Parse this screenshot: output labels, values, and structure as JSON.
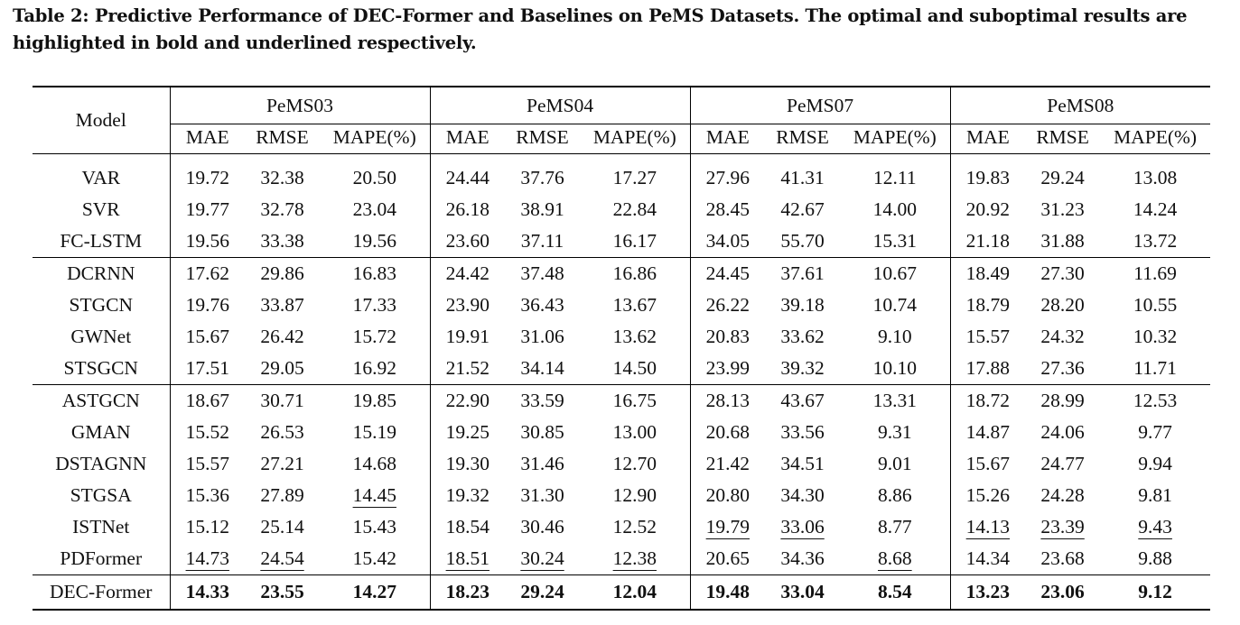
{
  "caption": "Table 2: Predictive Performance of DEC-Former and Baselines on PeMS Datasets. The optimal and suboptimal results are highlighted in bold and underlined respectively.",
  "header": {
    "model_label": "Model",
    "datasets": [
      "PeMS03",
      "PeMS04",
      "PeMS07",
      "PeMS08"
    ],
    "metrics": [
      "MAE",
      "RMSE",
      "MAPE(%)"
    ]
  },
  "rows": [
    {
      "model": "VAR",
      "values": [
        "19.72",
        "32.38",
        "20.50",
        "24.44",
        "37.76",
        "17.27",
        "27.96",
        "41.31",
        "12.11",
        "19.83",
        "29.24",
        "13.08"
      ]
    },
    {
      "model": "SVR",
      "values": [
        "19.77",
        "32.78",
        "23.04",
        "26.18",
        "38.91",
        "22.84",
        "28.45",
        "42.67",
        "14.00",
        "20.92",
        "31.23",
        "14.24"
      ]
    },
    {
      "model": "FC-LSTM",
      "values": [
        "19.56",
        "33.38",
        "19.56",
        "23.60",
        "37.11",
        "16.17",
        "34.05",
        "55.70",
        "15.31",
        "21.18",
        "31.88",
        "13.72"
      ]
    },
    {
      "model": "DCRNN",
      "values": [
        "17.62",
        "29.86",
        "16.83",
        "24.42",
        "37.48",
        "16.86",
        "24.45",
        "37.61",
        "10.67",
        "18.49",
        "27.30",
        "11.69"
      ]
    },
    {
      "model": "STGCN",
      "values": [
        "19.76",
        "33.87",
        "17.33",
        "23.90",
        "36.43",
        "13.67",
        "26.22",
        "39.18",
        "10.74",
        "18.79",
        "28.20",
        "10.55"
      ]
    },
    {
      "model": "GWNet",
      "values": [
        "15.67",
        "26.42",
        "15.72",
        "19.91",
        "31.06",
        "13.62",
        "20.83",
        "33.62",
        "9.10",
        "15.57",
        "24.32",
        "10.32"
      ]
    },
    {
      "model": "STSGCN",
      "values": [
        "17.51",
        "29.05",
        "16.92",
        "21.52",
        "34.14",
        "14.50",
        "23.99",
        "39.32",
        "10.10",
        "17.88",
        "27.36",
        "11.71"
      ]
    },
    {
      "model": "ASTGCN",
      "values": [
        "18.67",
        "30.71",
        "19.85",
        "22.90",
        "33.59",
        "16.75",
        "28.13",
        "43.67",
        "13.31",
        "18.72",
        "28.99",
        "12.53"
      ]
    },
    {
      "model": "GMAN",
      "values": [
        "15.52",
        "26.53",
        "15.19",
        "19.25",
        "30.85",
        "13.00",
        "20.68",
        "33.56",
        "9.31",
        "14.87",
        "24.06",
        "9.77"
      ]
    },
    {
      "model": "DSTAGNN",
      "values": [
        "15.57",
        "27.21",
        "14.68",
        "19.30",
        "31.46",
        "12.70",
        "21.42",
        "34.51",
        "9.01",
        "15.67",
        "24.77",
        "9.94"
      ]
    },
    {
      "model": "STGSA",
      "values": [
        "15.36",
        "27.89",
        "14.45",
        "19.32",
        "31.30",
        "12.90",
        "20.80",
        "34.30",
        "8.86",
        "15.26",
        "24.28",
        "9.81"
      ]
    },
    {
      "model": "ISTNet",
      "values": [
        "15.12",
        "25.14",
        "15.43",
        "18.54",
        "30.46",
        "12.52",
        "19.79",
        "33.06",
        "8.77",
        "14.13",
        "23.39",
        "9.43"
      ]
    },
    {
      "model": "PDFormer",
      "values": [
        "14.73",
        "24.54",
        "15.42",
        "18.51",
        "30.24",
        "12.38",
        "20.65",
        "34.36",
        "8.68",
        "14.34",
        "23.68",
        "9.88"
      ]
    },
    {
      "model": "DEC-Former",
      "values": [
        "14.33",
        "23.55",
        "14.27",
        "18.23",
        "29.24",
        "12.04",
        "19.48",
        "33.04",
        "8.54",
        "13.23",
        "23.06",
        "9.12"
      ]
    }
  ]
}
